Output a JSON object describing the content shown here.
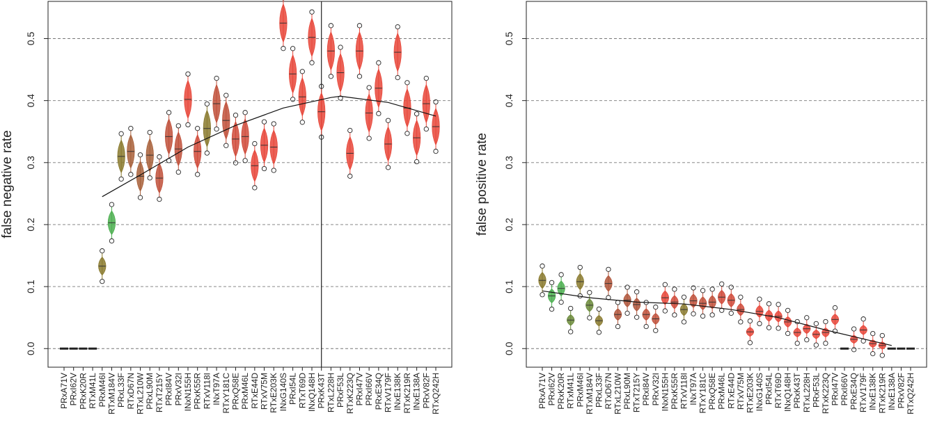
{
  "colors": {
    "green": "#4caf50",
    "olive": "#8a7a2e",
    "brown": "#b0553a",
    "red": "#e8473a",
    "grid": "#777777",
    "fit": "#111111"
  },
  "chart_data": [
    {
      "type": "violin",
      "ylabel": "false negative rate",
      "xlabel": "",
      "ylim": [
        -0.03,
        0.56
      ],
      "yticks": [
        "0.0",
        "0.1",
        "0.2",
        "0.3",
        "0.4",
        "0.5"
      ],
      "grid": "horizontal dashed",
      "categories": [
        "PRxA71V",
        "PRxI62V",
        "PRxK20R",
        "RTxM41L",
        "PRxM46I",
        "RTxM184V",
        "PRxL33F",
        "RTxD67N",
        "RTxL210W",
        "PRxL90M",
        "RTxT215Y",
        "PRxI84V",
        "PRxV32I",
        "INxN155H",
        "PRxK55R",
        "RTxV118I",
        "INxT97A",
        "RTxY181C",
        "PRxQ58E",
        "PRxM46L",
        "RTxE44D",
        "RTxV75M",
        "RTxE203K",
        "INxG140S",
        "PRxI54L",
        "RTxT69D",
        "INxQ148H",
        "PRxK43T",
        "RTxL228H",
        "PRxF53L",
        "RTxK223Q",
        "PRxI47V",
        "PRxI66V",
        "PRxE34Q",
        "RTxV179F",
        "INxE138K",
        "RTxK219R",
        "INxE138A",
        "PRxV82F",
        "RTxQ242H"
      ],
      "values": [
        0.0,
        0.0,
        0.0,
        0.0,
        0.133,
        0.203,
        0.31,
        0.318,
        0.278,
        0.312,
        0.275,
        0.342,
        0.322,
        0.402,
        0.318,
        0.355,
        0.395,
        0.368,
        0.338,
        0.342,
        0.295,
        0.328,
        0.325,
        0.525,
        0.443,
        0.406,
        0.502,
        0.382,
        0.48,
        0.445,
        0.315,
        0.48,
        0.38,
        0.42,
        0.33,
        0.478,
        0.388,
        0.34,
        0.395,
        0.358
      ],
      "colors": [
        "#4a4a4a",
        "#4a4a4a",
        "#4a4a4a",
        "#4a4a4a",
        "#8a7a2e",
        "#4caf50",
        "#8a7a2e",
        "#a8603a",
        "#a8603a",
        "#a8603a",
        "#c0503a",
        "#c0503a",
        "#c0503a",
        "#e8473a",
        "#d04a3a",
        "#8a7a2e",
        "#c0503a",
        "#c0503a",
        "#d04a3a",
        "#d04a3a",
        "#e8473a",
        "#e8473a",
        "#e8473a",
        "#e8473a",
        "#e8473a",
        "#e8473a",
        "#e8473a",
        "#e8473a",
        "#e8473a",
        "#e8473a",
        "#e8473a",
        "#e8473a",
        "#e8473a",
        "#e8473a",
        "#e8473a",
        "#e8473a",
        "#e8473a",
        "#e8473a",
        "#e8473a",
        "#e8473a"
      ],
      "fit_line": [
        [
          4,
          0.245
        ],
        [
          8,
          0.28
        ],
        [
          13,
          0.325
        ],
        [
          18,
          0.36
        ],
        [
          23,
          0.388
        ],
        [
          28,
          0.405
        ],
        [
          29,
          0.407
        ],
        [
          34,
          0.397
        ],
        [
          39,
          0.375
        ]
      ],
      "vline_at_index": 27
    },
    {
      "type": "violin",
      "ylabel": "false positive rate",
      "xlabel": "",
      "ylim": [
        -0.03,
        0.56
      ],
      "yticks": [
        "0.0",
        "0.1",
        "0.2",
        "0.3",
        "0.4",
        "0.5"
      ],
      "grid": "horizontal dashed",
      "categories": [
        "PRxA71V",
        "PRxI62V",
        "PRxK20R",
        "RTxM41L",
        "PRxM46I",
        "RTxM184V",
        "PRxL33F",
        "RTxD67N",
        "RTxL210W",
        "PRxL90M",
        "RTxT215Y",
        "PRxI84V",
        "PRxV32I",
        "INxN155H",
        "PRxK55R",
        "RTxV118I",
        "INxT97A",
        "RTxY181C",
        "PRxQ58E",
        "PRxM46L",
        "RTxE44D",
        "RTxV75M",
        "RTxE203K",
        "INxG140S",
        "PRxI54L",
        "RTxT69D",
        "INxQ148H",
        "PRxK43T",
        "RTxL228H",
        "PRxF53L",
        "RTxK223Q",
        "PRxI47V",
        "PRxI66V",
        "PRxE34Q",
        "RTxV179F",
        "INxE138K",
        "RTxK219R",
        "INxE138A",
        "PRxV82F",
        "RTxQ242H"
      ],
      "values": [
        0.11,
        0.085,
        0.097,
        0.046,
        0.108,
        0.07,
        0.045,
        0.105,
        0.055,
        0.078,
        0.071,
        0.055,
        0.048,
        0.082,
        0.075,
        0.063,
        0.077,
        0.073,
        0.075,
        0.083,
        0.078,
        0.063,
        0.027,
        0.06,
        0.053,
        0.052,
        0.043,
        0.026,
        0.032,
        0.023,
        0.026,
        0.047,
        0.0,
        0.015,
        0.03,
        0.008,
        0.005,
        0.0,
        0.0,
        0.0
      ],
      "colors": [
        "#8a7a2e",
        "#4caf50",
        "#4caf50",
        "#6b8a3a",
        "#8a7a2e",
        "#6b8a3a",
        "#8a7a2e",
        "#b0553a",
        "#b0553a",
        "#b0553a",
        "#b0553a",
        "#c0503a",
        "#c0503a",
        "#e8473a",
        "#d04a3a",
        "#8a7a2e",
        "#c0503a",
        "#c0503a",
        "#c0503a",
        "#d04a3a",
        "#d04a3a",
        "#d04a3a",
        "#e8473a",
        "#e8473a",
        "#e8473a",
        "#e8473a",
        "#e8473a",
        "#e8473a",
        "#e8473a",
        "#e8473a",
        "#e8473a",
        "#e8473a",
        "#4a4a4a",
        "#e8473a",
        "#e8473a",
        "#e8473a",
        "#e8473a",
        "#4a4a4a",
        "#4a4a4a",
        "#4a4a4a"
      ],
      "fit_line": [
        [
          0,
          0.093
        ],
        [
          5,
          0.082
        ],
        [
          10,
          0.075
        ],
        [
          15,
          0.072
        ],
        [
          20,
          0.063
        ],
        [
          25,
          0.05
        ],
        [
          30,
          0.03
        ],
        [
          35,
          0.012
        ],
        [
          37,
          0.005
        ]
      ]
    }
  ]
}
